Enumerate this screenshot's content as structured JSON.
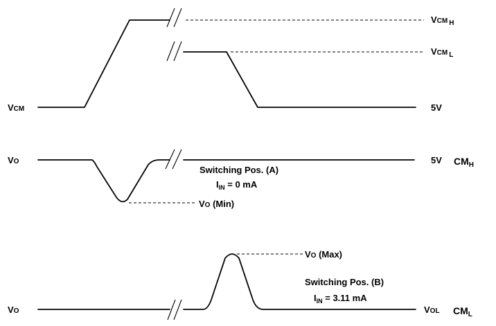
{
  "labels": {
    "vcm_main": "V",
    "vcm_main_sub": "CM",
    "vcm_h": "V",
    "vcm_h_sub": "CM",
    "vcm_h_sub2": "H",
    "vcm_l": "V",
    "vcm_l_sub": "CM",
    "vcm_l_sub2": "L",
    "five_v_top": "5V",
    "vo_mid": "V",
    "vo_mid_sub": "O",
    "five_v_mid": "5V",
    "cm_h": "CM",
    "cm_h_sub": "H",
    "switch_a_line1": "Switching Pos. (A)",
    "switch_a_i": "I",
    "switch_a_i_sub": "IN",
    "switch_a_i_val": " = 0 mA",
    "vo_min_v": "V",
    "vo_min_sub": "O",
    "vo_min_text": " (Min)",
    "vo_max_v": "V",
    "vo_max_sub": "O",
    "vo_max_text": " (Max)",
    "switch_b_line1": "Switching Pos. (B)",
    "switch_b_i": "I",
    "switch_b_i_sub": "IN",
    "switch_b_i_val": " = 3.11 mA",
    "vo_bot": "V",
    "vo_bot_sub": "O",
    "vol_v": "V",
    "vol_sub": "OL",
    "cm_l": "CM",
    "cm_l_sub": "L"
  }
}
